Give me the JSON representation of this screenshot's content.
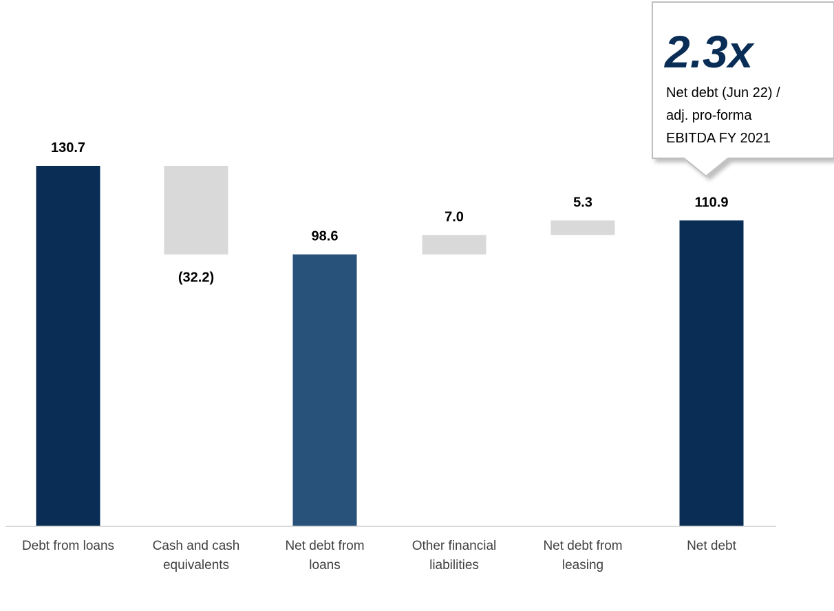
{
  "chart_data": {
    "type": "bar",
    "subtype": "waterfall",
    "categories": [
      [
        "Debt from loans"
      ],
      [
        "Cash and cash",
        "equivalents"
      ],
      [
        "Net debt from",
        "loans"
      ],
      [
        "Other financial",
        "liabilities"
      ],
      [
        "Net debt from",
        "leasing"
      ],
      [
        "Net debt"
      ]
    ],
    "bars": [
      {
        "kind": "total",
        "start": 0,
        "end": 130.7,
        "label": "130.7",
        "color": "#0a2d55"
      },
      {
        "kind": "delta",
        "start": 130.7,
        "end": 98.6,
        "label": "(32.2)",
        "color": "#d9d9d9"
      },
      {
        "kind": "total",
        "start": 0,
        "end": 98.6,
        "label": "98.6",
        "color": "#28527a"
      },
      {
        "kind": "delta",
        "start": 98.6,
        "end": 105.6,
        "label": "7.0",
        "color": "#d9d9d9"
      },
      {
        "kind": "delta",
        "start": 105.6,
        "end": 110.9,
        "label": "5.3",
        "color": "#d9d9d9"
      },
      {
        "kind": "total",
        "start": 0,
        "end": 110.9,
        "label": "110.9",
        "color": "#0a2d55"
      }
    ],
    "ylim": [
      0,
      130.7
    ],
    "grid": false,
    "title": "",
    "xlabel": "",
    "ylabel": ""
  },
  "callout": {
    "value": "2.3x",
    "lines": [
      "Net debt (Jun 22) /",
      "adj. pro-forma",
      "EBITDA FY 2021"
    ]
  },
  "colors": {
    "axis": "#d9d9d9",
    "callout_border": "#bfbfbf"
  }
}
